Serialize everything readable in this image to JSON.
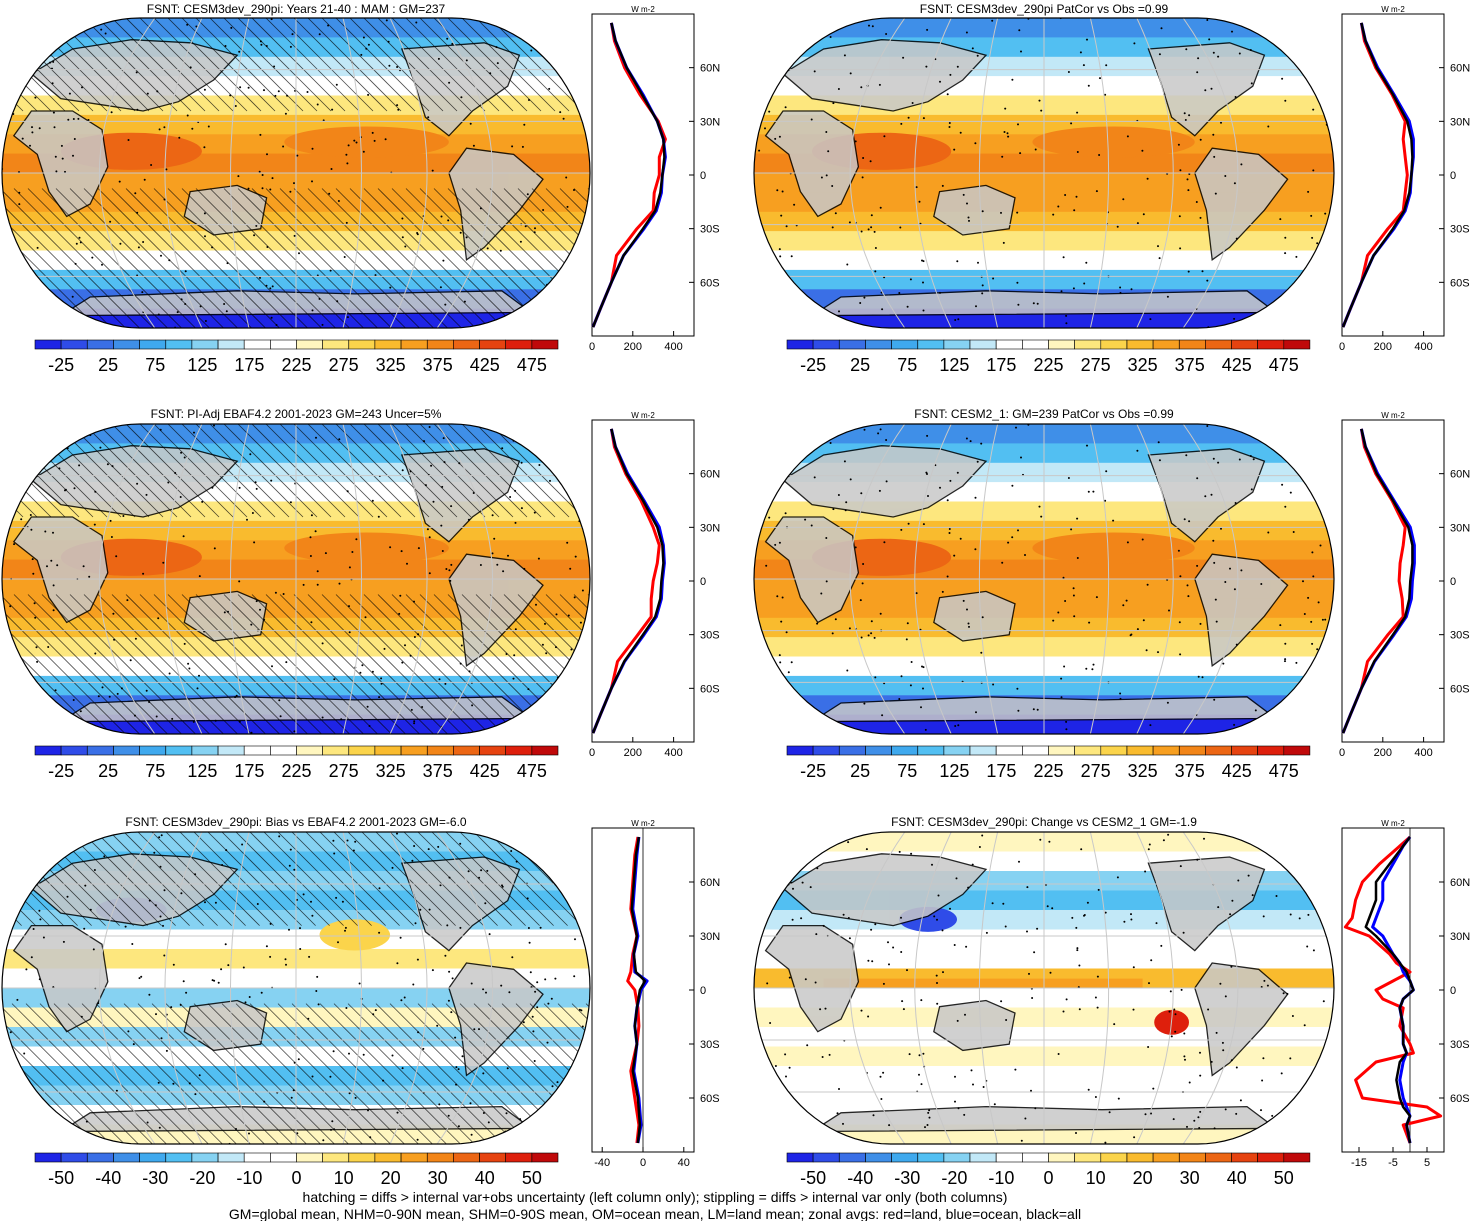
{
  "variable": "FSNT",
  "colors": {
    "map_palette": [
      "#1e24e6",
      "#2f4ce8",
      "#3a6fe6",
      "#3f8fe8",
      "#3fa9ee",
      "#52bff2",
      "#86d2f2",
      "#c2e8f7",
      "#ffffff",
      "#ffffff",
      "#fff6bf",
      "#fde77e",
      "#fbd44b",
      "#f9bb2e",
      "#f79f20",
      "#f28518",
      "#ec6614",
      "#e64310",
      "#de1f0c",
      "#c0090a"
    ],
    "land_mask": "#c8c8c8",
    "land_line": "#000000",
    "graticule": "#c8c8c8",
    "zonal_land": "#ff0000",
    "zonal_ocean": "#0000ff",
    "zonal_all": "#000000"
  },
  "footnotes": [
    "hatching = diffs > internal var+obs uncertainty (left column only); stippling = diffs > internal var only (both columns)",
    "GM=global mean, NHM=0-90N mean, SHM=0-90S mean, OM=ocean mean, LM=land mean; zonal avgs: red=land, blue=ocean, black=all"
  ],
  "chart_data": [
    {
      "type": "heatmap",
      "title": "FSNT: CESM3dev_290pi: Years 21-40 : MAM : GM=237",
      "projection": "robinson",
      "colorbar_labels": [
        "-25",
        "25",
        "75",
        "125",
        "175",
        "225",
        "275",
        "325",
        "375",
        "425",
        "475"
      ],
      "colorbar_range": [
        -50,
        500
      ],
      "hatching": true,
      "stippling": true,
      "zonal": {
        "type": "line",
        "units": "W m-2",
        "xlim": [
          0,
          500
        ],
        "ylim": [
          -90,
          90
        ],
        "xticks": [
          "0",
          "200",
          "400"
        ],
        "yticks": [
          "60N",
          "30N",
          "0",
          "30S",
          "60S"
        ],
        "lat": [
          85,
          75,
          60,
          45,
          30,
          20,
          10,
          0,
          -10,
          -20,
          -30,
          -45,
          -60,
          -75,
          -85
        ],
        "series": [
          {
            "color": "#ff0000",
            "values": [
              95,
              110,
              160,
              235,
              325,
              360,
              330,
              330,
              305,
              300,
              220,
              120,
              95,
              40,
              5
            ]
          },
          {
            "color": "#0000ff",
            "values": [
              95,
              115,
              170,
              250,
              320,
              350,
              360,
              345,
              340,
              315,
              255,
              155,
              95,
              40,
              5
            ]
          },
          {
            "color": "#000000",
            "values": [
              95,
              115,
              170,
              245,
              320,
              350,
              355,
              345,
              335,
              310,
              250,
              155,
              95,
              40,
              5
            ]
          }
        ]
      }
    },
    {
      "type": "heatmap",
      "title": "FSNT: CESM3dev_290pi PatCor vs Obs =0.99",
      "projection": "robinson",
      "colorbar_labels": [
        "-25",
        "25",
        "75",
        "125",
        "175",
        "225",
        "275",
        "325",
        "375",
        "425",
        "475"
      ],
      "colorbar_range": [
        -50,
        500
      ],
      "hatching": false,
      "stippling": true,
      "zonal": {
        "type": "line",
        "units": "W m-2",
        "xlim": [
          0,
          500
        ],
        "ylim": [
          -90,
          90
        ],
        "xticks": [
          "0",
          "200",
          "400"
        ],
        "yticks": [
          "60N",
          "30N",
          "0",
          "30S",
          "60S"
        ],
        "lat": [
          85,
          75,
          60,
          45,
          30,
          20,
          10,
          0,
          -10,
          -20,
          -30,
          -45,
          -60,
          -75,
          -85
        ],
        "series": [
          {
            "color": "#ff0000",
            "values": [
              95,
              110,
              165,
              245,
              310,
              300,
              310,
              320,
              310,
              300,
              225,
              125,
              95,
              40,
              5
            ]
          },
          {
            "color": "#0000ff",
            "values": [
              95,
              115,
              175,
              255,
              330,
              350,
              350,
              340,
              335,
              310,
              255,
              155,
              95,
              40,
              5
            ]
          },
          {
            "color": "#000000",
            "values": [
              95,
              115,
              170,
              250,
              320,
              340,
              345,
              340,
              330,
              305,
              250,
              155,
              95,
              40,
              5
            ]
          }
        ]
      }
    },
    {
      "type": "heatmap",
      "title": "FSNT: PI-Adj EBAF4.2 2001-2023 GM=243 Uncer=5%",
      "projection": "robinson",
      "colorbar_labels": [
        "-25",
        "25",
        "75",
        "125",
        "175",
        "225",
        "275",
        "325",
        "375",
        "425",
        "475"
      ],
      "colorbar_range": [
        -50,
        500
      ],
      "hatching": true,
      "stippling": true,
      "zonal": {
        "type": "line",
        "units": "W m-2",
        "xlim": [
          0,
          500
        ],
        "ylim": [
          -90,
          90
        ],
        "xticks": [
          "0",
          "200",
          "400"
        ],
        "yticks": [
          "60N",
          "30N",
          "0",
          "30S",
          "60S"
        ],
        "lat": [
          85,
          75,
          60,
          45,
          30,
          20,
          10,
          0,
          -10,
          -20,
          -30,
          -45,
          -60,
          -75,
          -85
        ],
        "series": [
          {
            "color": "#ff0000",
            "values": [
              95,
              110,
              165,
              240,
              300,
              330,
              320,
              300,
              290,
              290,
              225,
              125,
              95,
              40,
              5
            ]
          },
          {
            "color": "#0000ff",
            "values": [
              95,
              115,
              175,
              255,
              330,
              350,
              355,
              345,
              340,
              315,
              255,
              160,
              95,
              40,
              5
            ]
          },
          {
            "color": "#000000",
            "values": [
              95,
              115,
              170,
              250,
              320,
              345,
              350,
              340,
              335,
              310,
              250,
              158,
              95,
              40,
              5
            ]
          }
        ]
      }
    },
    {
      "type": "heatmap",
      "title": "FSNT: CESM2_1: GM=239 PatCor vs Obs =0.99",
      "projection": "robinson",
      "colorbar_labels": [
        "-25",
        "25",
        "75",
        "125",
        "175",
        "225",
        "275",
        "325",
        "375",
        "425",
        "475"
      ],
      "colorbar_range": [
        -50,
        500
      ],
      "hatching": false,
      "stippling": true,
      "zonal": {
        "type": "line",
        "units": "W m-2",
        "xlim": [
          0,
          500
        ],
        "ylim": [
          -90,
          90
        ],
        "xticks": [
          "0",
          "200",
          "400"
        ],
        "yticks": [
          "60N",
          "30N",
          "0",
          "30S",
          "60S"
        ],
        "lat": [
          85,
          75,
          60,
          45,
          30,
          20,
          10,
          0,
          -10,
          -20,
          -30,
          -45,
          -60,
          -75,
          -85
        ],
        "series": [
          {
            "color": "#ff0000",
            "values": [
              95,
              110,
              165,
              245,
              310,
              300,
              285,
              280,
              295,
              300,
              225,
              125,
              95,
              40,
              5
            ]
          },
          {
            "color": "#0000ff",
            "values": [
              95,
              115,
              175,
              255,
              335,
              355,
              355,
              345,
              340,
              315,
              255,
              160,
              95,
              40,
              5
            ]
          },
          {
            "color": "#000000",
            "values": [
              95,
              115,
              170,
              250,
              325,
              345,
              345,
              335,
              330,
              310,
              250,
              158,
              95,
              40,
              5
            ]
          }
        ]
      }
    },
    {
      "type": "heatmap",
      "title": "FSNT: CESM3dev_290pi: Bias vs EBAF4.2 2001-2023 GM=-6.0",
      "projection": "robinson",
      "colorbar_labels": [
        "-50",
        "-40",
        "-30",
        "-20",
        "-10",
        "0",
        "10",
        "20",
        "30",
        "40",
        "50"
      ],
      "colorbar_range": [
        -55,
        55
      ],
      "hatching": true,
      "stippling": true,
      "zonal": {
        "type": "line",
        "units": "W m-2",
        "xlim": [
          -50,
          50
        ],
        "ylim": [
          -90,
          90
        ],
        "xticks": [
          "-40",
          "0",
          "40"
        ],
        "yticks": [
          "60N",
          "30N",
          "0",
          "30S",
          "60S"
        ],
        "lat": [
          85,
          75,
          60,
          45,
          30,
          20,
          10,
          5,
          0,
          -10,
          -20,
          -30,
          -45,
          -60,
          -75,
          -85
        ],
        "series": [
          {
            "color": "#ff0000",
            "values": [
              -5,
              -8,
              -10,
              -12,
              -6,
              -10,
              -12,
              -15,
              -8,
              -5,
              -4,
              -6,
              -12,
              -8,
              -4,
              -6
            ]
          },
          {
            "color": "#0000ff",
            "values": [
              -4,
              -6,
              -8,
              -10,
              -5,
              -9,
              -8,
              4,
              -2,
              -6,
              -8,
              -6,
              -9,
              -4,
              -2,
              -5
            ]
          },
          {
            "color": "#000000",
            "values": [
              -4,
              -7,
              -9,
              -11,
              -6,
              -9,
              -7,
              2,
              -3,
              -6,
              -8,
              -6,
              -10,
              -5,
              -3,
              -5
            ]
          }
        ]
      }
    },
    {
      "type": "heatmap",
      "title": "FSNT: CESM3dev_290pi: Change vs CESM2_1 GM=-1.9",
      "projection": "robinson",
      "colorbar_labels": [
        "-50",
        "-40",
        "-30",
        "-20",
        "-10",
        "0",
        "10",
        "20",
        "30",
        "40",
        "50"
      ],
      "colorbar_range": [
        -55,
        55
      ],
      "hatching": false,
      "stippling": true,
      "zonal": {
        "type": "line",
        "units": "W m-2",
        "xlim": [
          -20,
          10
        ],
        "ylim": [
          -90,
          90
        ],
        "xticks": [
          "-15",
          "-5",
          "5"
        ],
        "yticks": [
          "60N",
          "30N",
          "0",
          "30S",
          "60S"
        ],
        "lat": [
          85,
          80,
          70,
          60,
          50,
          40,
          35,
          30,
          20,
          15,
          10,
          5,
          0,
          -5,
          -10,
          -20,
          -30,
          -35,
          -40,
          -50,
          -60,
          -65,
          -70,
          -75,
          -85
        ],
        "series": [
          {
            "color": "#ff0000",
            "values": [
              0,
              -3,
              -9,
              -14,
              -16,
              -17,
              -19,
              -12,
              -6,
              -4,
              0,
              -5,
              -10,
              -8,
              -2,
              -3,
              0,
              1,
              -10,
              -16,
              -14,
              5,
              9,
              -2,
              0
            ]
          },
          {
            "color": "#0000ff",
            "values": [
              0,
              -2,
              -5,
              -8,
              -8,
              -10,
              -11,
              -8,
              -5,
              -3,
              -2,
              0,
              1,
              -2,
              -3,
              -2,
              -2,
              -1,
              -2,
              -3,
              -2,
              -1,
              0,
              -1,
              0
            ]
          },
          {
            "color": "#000000",
            "values": [
              0,
              -2,
              -6,
              -10,
              -10,
              -12,
              -13,
              -10,
              -5,
              -3,
              -1,
              0,
              1,
              -2,
              -3,
              -2,
              -2,
              -1,
              -3,
              -4,
              -3,
              -2,
              0,
              -1,
              0
            ]
          }
        ]
      }
    }
  ]
}
